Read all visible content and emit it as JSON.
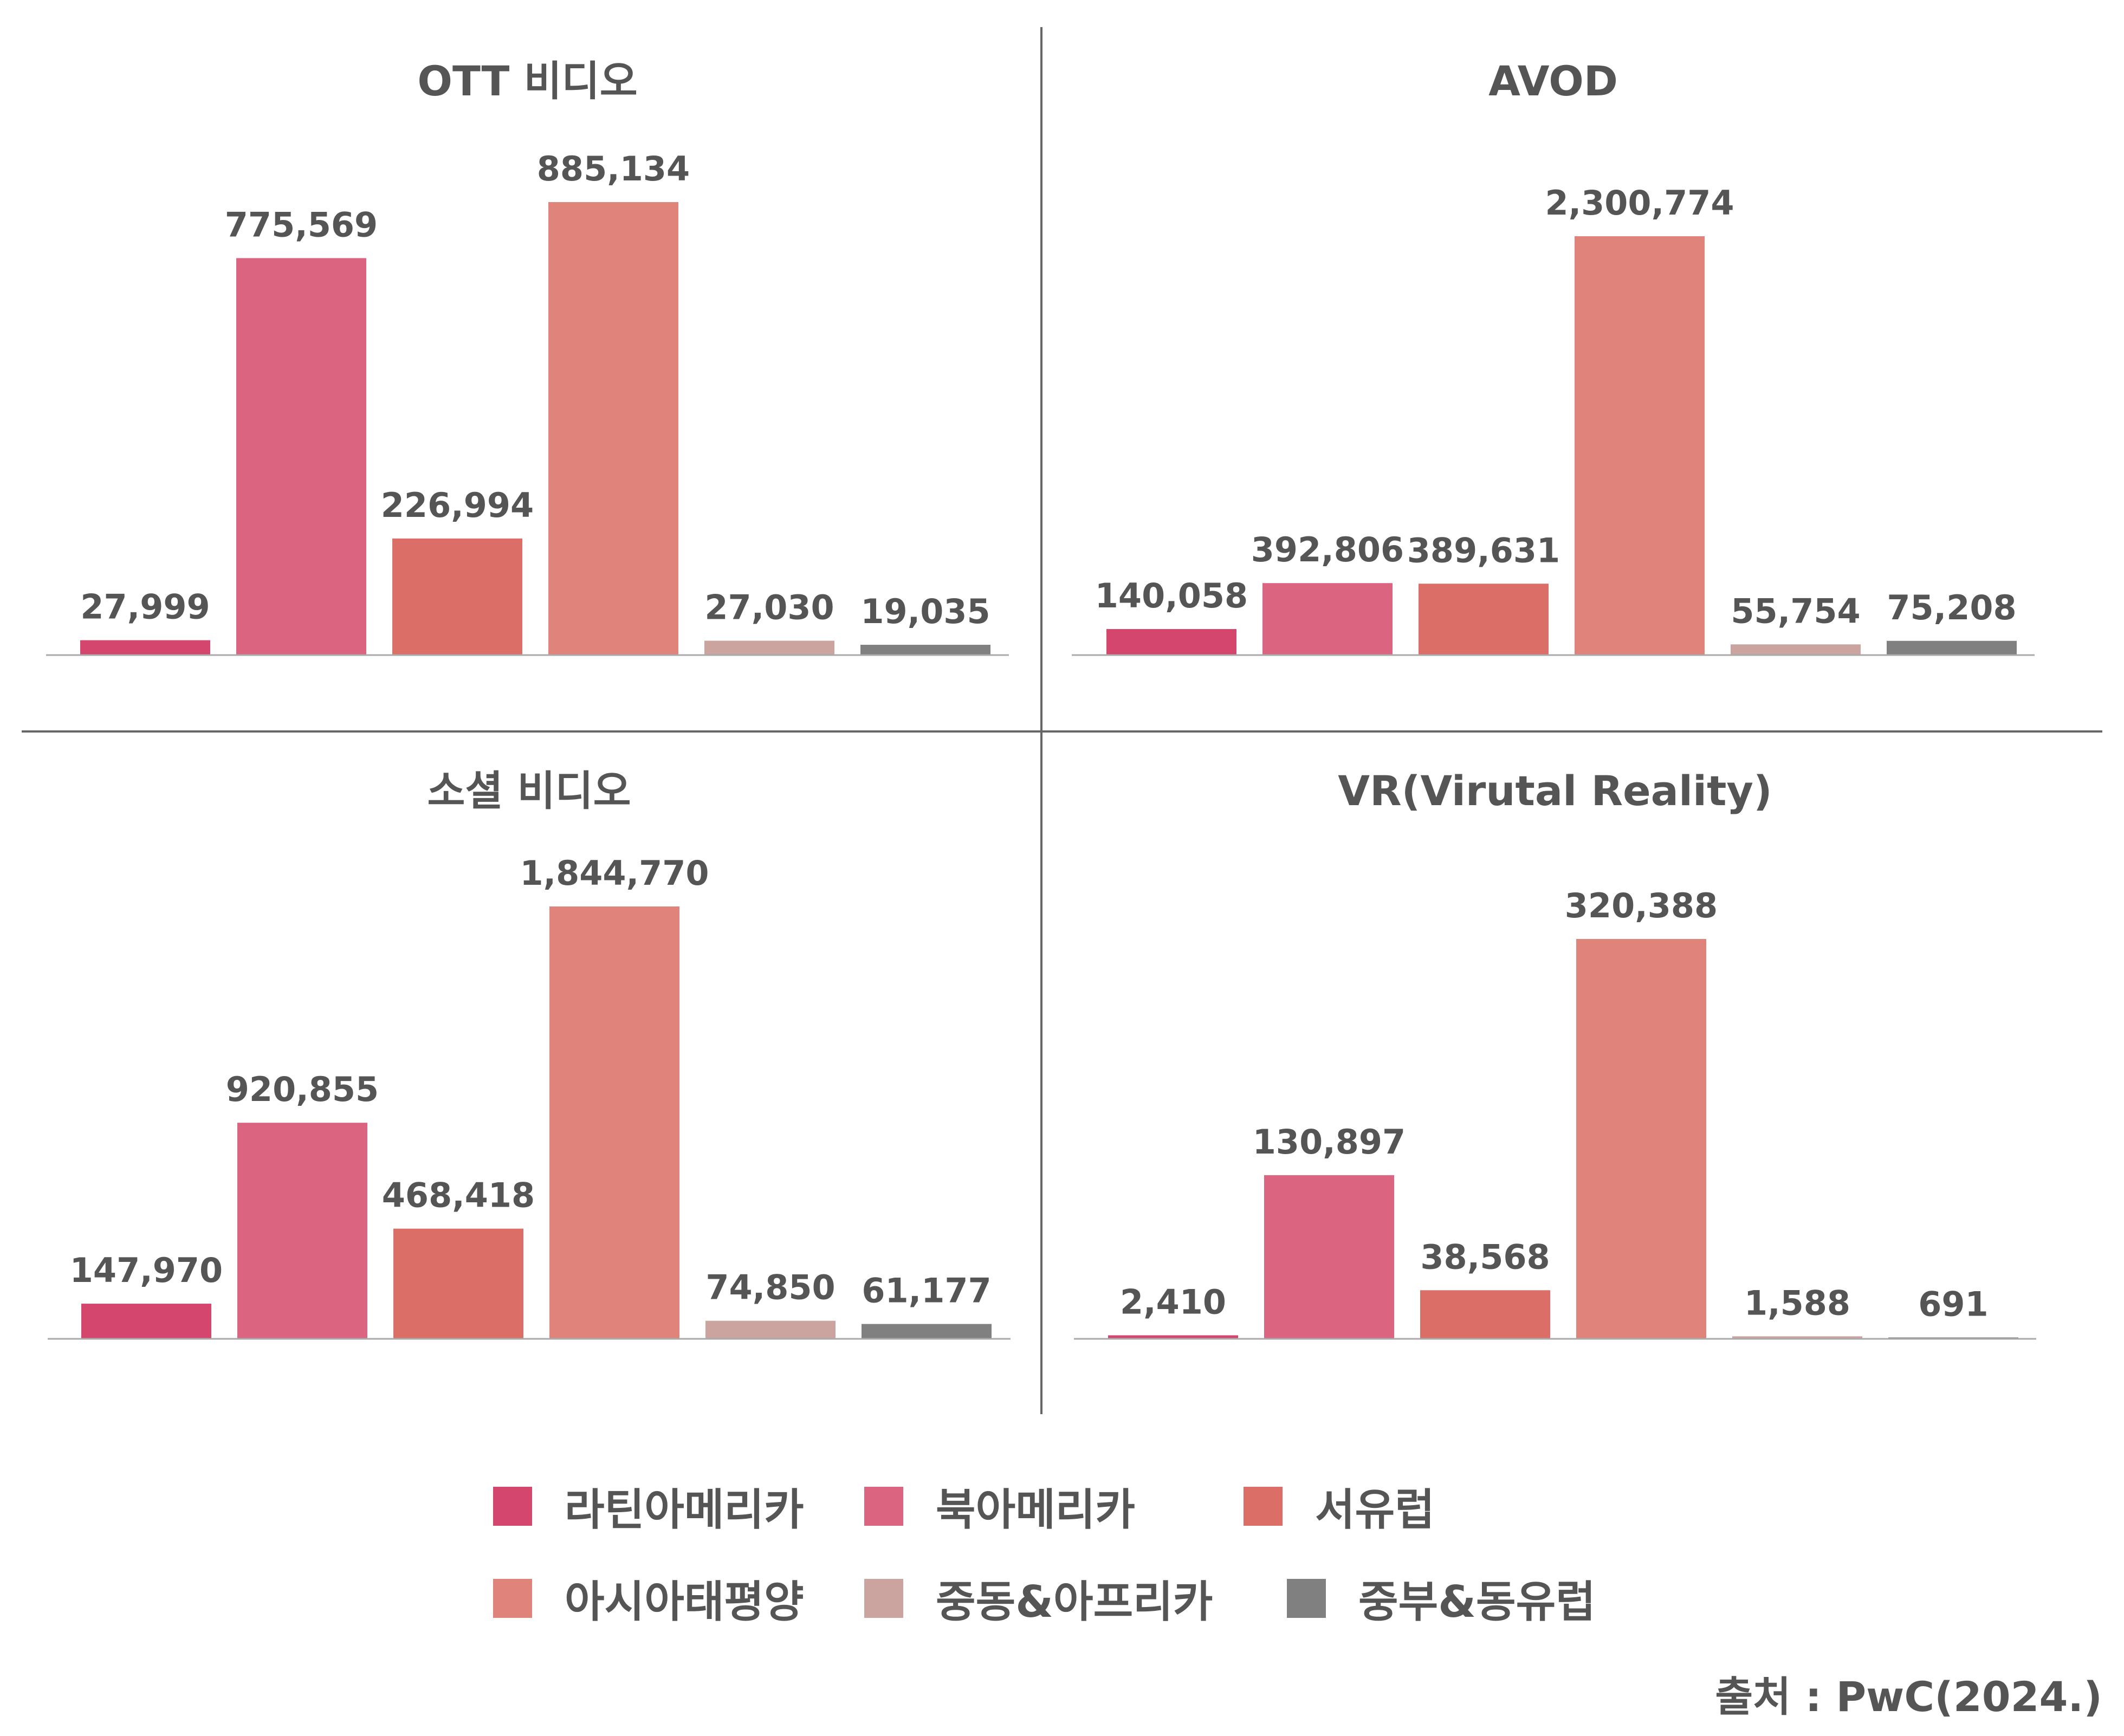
{
  "colors": {
    "latin_america": "#D4466E",
    "north_america": "#DB6580",
    "western_europe": "#DB6E66",
    "asia_pacific": "#E0837B",
    "mea": "#CBA39F",
    "central_eastern_europe": "#808080"
  },
  "legend": [
    {
      "label": "라틴아메리카",
      "color": "#D4466E"
    },
    {
      "label": "북아메리카",
      "color": "#DB6580"
    },
    {
      "label": "서유럽",
      "color": "#DB6E66"
    },
    {
      "label": "아시아태평양",
      "color": "#E0837B"
    },
    {
      "label": "중동&아프리카",
      "color": "#CBA39F"
    },
    {
      "label": "중부&동유럽",
      "color": "#808080"
    }
  ],
  "source": "출처 : PwC(2024.)",
  "chart_data": [
    {
      "type": "bar",
      "title": "OTT 비디오",
      "categories": [
        "라틴아메리카",
        "북아메리카",
        "서유럽",
        "아시아태평양",
        "중동&아프리카",
        "중부&동유럽"
      ],
      "values": [
        27999,
        775569,
        226994,
        885134,
        27030,
        19035
      ],
      "value_labels": [
        "27,999",
        "775,569",
        "226,994",
        "885,134",
        "27,030",
        "19,035"
      ]
    },
    {
      "type": "bar",
      "title": "AVOD",
      "categories": [
        "라틴아메리카",
        "북아메리카",
        "서유럽",
        "아시아태평양",
        "중동&아프리카",
        "중부&동유럽"
      ],
      "values": [
        140058,
        392806,
        389631,
        2300774,
        55754,
        75208
      ],
      "value_labels": [
        "140,058",
        "392,806",
        "389,631",
        "2,300,774",
        "55,754",
        "75,208"
      ]
    },
    {
      "type": "bar",
      "title": "소셜 비디오",
      "categories": [
        "라틴아메리카",
        "북아메리카",
        "서유럽",
        "아시아태평양",
        "중동&아프리카",
        "중부&동유럽"
      ],
      "values": [
        147970,
        920855,
        468418,
        1844770,
        74850,
        61177
      ],
      "value_labels": [
        "147,970",
        "920,855",
        "468,418",
        "1,844,770",
        "74,850",
        "61,177"
      ]
    },
    {
      "type": "bar",
      "title": "VR(Virutal Reality)",
      "categories": [
        "라틴아메리카",
        "북아메리카",
        "서유럽",
        "아시아태평양",
        "중동&아프리카",
        "중부&동유럽"
      ],
      "values": [
        2410,
        130897,
        38568,
        320388,
        1588,
        691
      ],
      "value_labels": [
        "2,410",
        "130,897",
        "38,568",
        "320,388",
        "1,588",
        "691"
      ]
    }
  ]
}
